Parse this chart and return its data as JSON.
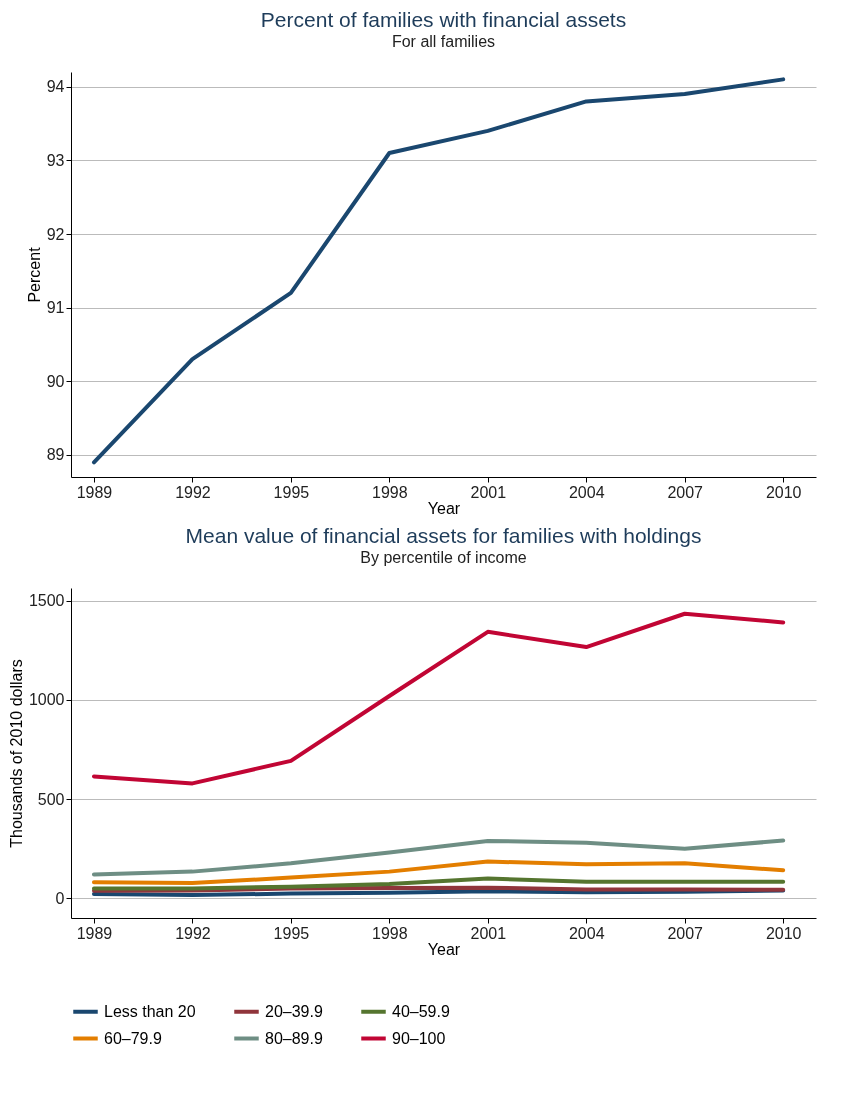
{
  "chart_data": [
    {
      "type": "line",
      "title": "Percent of families with financial assets",
      "subtitle": "For all families",
      "xlabel": "Year",
      "ylabel": "Percent",
      "x": [
        1989,
        1992,
        1995,
        1998,
        2001,
        2004,
        2007,
        2010
      ],
      "values": [
        88.9,
        90.3,
        91.2,
        93.1,
        93.4,
        93.8,
        93.9,
        94.1
      ],
      "color": "#1a476f",
      "xlim": [
        1988.3,
        2011
      ],
      "xticks": [
        1989,
        1992,
        1995,
        1998,
        2001,
        2004,
        2007,
        2010
      ],
      "ylim": [
        88.7,
        94.2
      ],
      "yticks": [
        89,
        90,
        91,
        92,
        93,
        94
      ],
      "grid": "y"
    },
    {
      "type": "line",
      "title": "Mean value of financial assets for families with holdings",
      "subtitle": "By percentile of income",
      "xlabel": "Year",
      "ylabel": "Thousands of 2010 dollars",
      "x": [
        1989,
        1992,
        1995,
        1998,
        2001,
        2004,
        2007,
        2010
      ],
      "series": [
        {
          "name": "Less than 20",
          "color": "#1a476f",
          "values": [
            21,
            16,
            23,
            28,
            35,
            30,
            32,
            39
          ]
        },
        {
          "name": "20–39.9",
          "color": "#90353b",
          "values": [
            37,
            39,
            49,
            51,
            53,
            44,
            44,
            42
          ]
        },
        {
          "name": "40–59.9",
          "color": "#55752f",
          "values": [
            49,
            49,
            58,
            72,
            99,
            83,
            83,
            83
          ]
        },
        {
          "name": "60–79.9",
          "color": "#e37e00",
          "values": [
            81,
            76,
            104,
            134,
            185,
            171,
            176,
            141
          ]
        },
        {
          "name": "80–89.9",
          "color": "#6e8e84",
          "values": [
            120,
            134,
            176,
            231,
            289,
            280,
            249,
            291
          ]
        },
        {
          "name": "90–100",
          "color": "#c10534",
          "values": [
            614,
            579,
            693,
            1020,
            1344,
            1267,
            1435,
            1391
          ]
        }
      ],
      "xlim": [
        1988.3,
        2011
      ],
      "xticks": [
        1989,
        1992,
        1995,
        1998,
        2001,
        2004,
        2007,
        2010
      ],
      "ylim": [
        -100,
        1565
      ],
      "yticks": [
        0,
        500,
        1000,
        1500
      ],
      "grid": "y",
      "legend": "bottom"
    }
  ]
}
